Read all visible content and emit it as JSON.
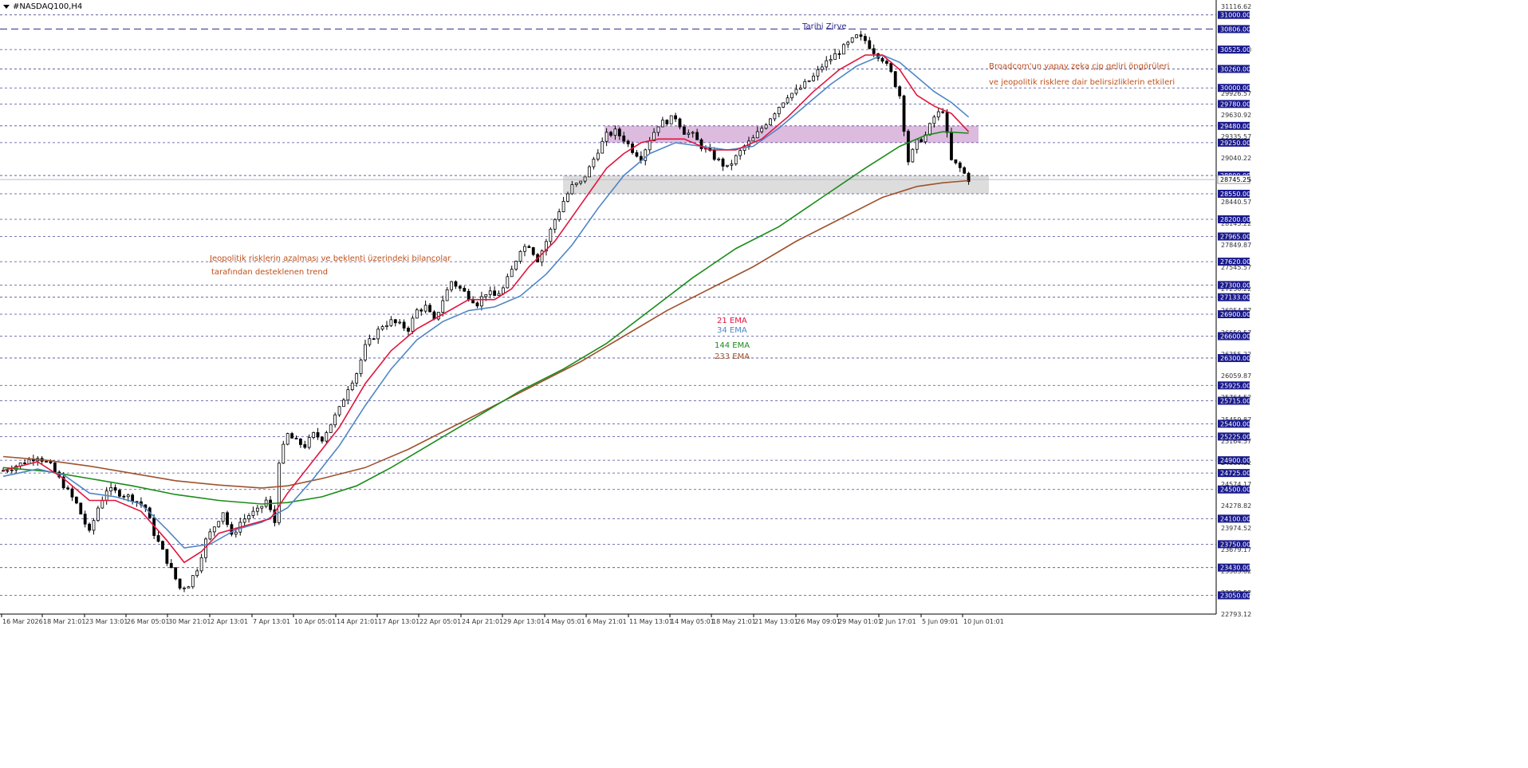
{
  "symbol": {
    "label": "#NASDAQ100,H4"
  },
  "colors": {
    "background": "#ffffff",
    "grid_level": "#2b2b8c",
    "candle": "#000000",
    "ema21": "#e2143c",
    "ema34": "#4f86c6",
    "ema144": "#1a8c1a",
    "ema233": "#a0522d",
    "annotation_orange": "#c0501a",
    "annotation_blue": "#2b2b8c",
    "resistance_zone": "#d8b4dc",
    "support_zone": "#d9d9d9",
    "price_box_fill": "#1a1a8c",
    "price_box_text": "#ffffff",
    "axis_text": "#333333"
  },
  "annotations": {
    "ath_label": "Tarihi Zirve",
    "right_note_line1": "Broadcom'un yapay zeka çip geliri öngörüleri",
    "right_note_line2": "ve jeopolitik risklere dair belirsizliklerin etkileri",
    "left_note_line1": "Jeopolitik risklerin azalması ve beklenti üzerindeki bilançolar",
    "left_note_line2": "tarafından desteklenen trend"
  },
  "chart_data": {
    "type": "candlestick",
    "title": "",
    "timeframe": "H4",
    "ylim": [
      22793.12,
      31116.62
    ],
    "y_tick_labels": [
      "31116.62",
      "30525.00",
      "29926.57",
      "29630.92",
      "29335.57",
      "29040.22",
      "28745.25",
      "28440.57",
      "28145.22",
      "27849.87",
      "27545.57",
      "27250.22",
      "26954.87",
      "26650.57",
      "26355.22",
      "26059.87",
      "25764.52",
      "25459.87",
      "25164.57",
      "24869.22",
      "24574.17",
      "24278.82",
      "23974.52",
      "23679.17",
      "23383.82",
      "23088.52",
      "22793.12"
    ],
    "x_tick_labels": [
      "16 Mar 2026",
      "18 Mar 21:01",
      "23 Mar 13:01",
      "26 Mar 05:01",
      "30 Mar 21:01",
      "2 Apr 13:01",
      "7 Apr 13:01",
      "10 Apr 05:01",
      "14 Apr 21:01",
      "17 Apr 13:01",
      "22 Apr 05:01",
      "24 Apr 21:01",
      "29 Apr 13:01",
      "4 May 05:01",
      "6 May 21:01",
      "11 May 13:01",
      "14 May 05:01",
      "18 May 21:01",
      "21 May 13:01",
      "26 May 09:01",
      "29 May 01:01",
      "2 Jun 17:01",
      "5 Jun 09:01",
      "10 Jun 01:01"
    ],
    "levels": [
      31000,
      30806,
      30525,
      30260,
      30000,
      29780,
      29480,
      29250,
      28800,
      28550,
      28200,
      27965,
      27620,
      27300,
      27133,
      26900,
      26600,
      26300,
      25925,
      25715,
      25400,
      25225,
      24900,
      24725,
      24500,
      24100,
      23750,
      23430,
      23050
    ],
    "ath_level": 30806,
    "current_price": 28745.25,
    "zones": [
      {
        "name": "resistance",
        "from": 29250,
        "to": 29480
      },
      {
        "name": "support",
        "from": 28550,
        "to": 28800
      }
    ],
    "legend": [
      {
        "name": "21 EMA",
        "color": "#e2143c"
      },
      {
        "name": "34 EMA",
        "color": "#4f86c6"
      },
      {
        "name": "144 EMA",
        "color": "#1a8c1a"
      },
      {
        "name": "233 EMA",
        "color": "#a0522d"
      }
    ],
    "price_path": [
      [
        0,
        24760
      ],
      [
        4,
        24850
      ],
      [
        8,
        24960
      ],
      [
        11,
        24820
      ],
      [
        14,
        24560
      ],
      [
        17,
        24300
      ],
      [
        20,
        23900
      ],
      [
        22,
        24250
      ],
      [
        24,
        24500
      ],
      [
        27,
        24450
      ],
      [
        30,
        24380
      ],
      [
        33,
        24250
      ],
      [
        35,
        23900
      ],
      [
        37,
        23650
      ],
      [
        39,
        23400
      ],
      [
        41,
        23150
      ],
      [
        43,
        23200
      ],
      [
        45,
        23420
      ],
      [
        47,
        23800
      ],
      [
        49,
        24000
      ],
      [
        51,
        24200
      ],
      [
        53,
        23850
      ],
      [
        55,
        24050
      ],
      [
        57,
        24150
      ],
      [
        59,
        24200
      ],
      [
        61,
        24350
      ],
      [
        63,
        24050
      ],
      [
        64,
        24900
      ],
      [
        66,
        25250
      ],
      [
        68,
        25150
      ],
      [
        70,
        25100
      ],
      [
        72,
        25250
      ],
      [
        74,
        25200
      ],
      [
        76,
        25400
      ],
      [
        78,
        25600
      ],
      [
        80,
        25900
      ],
      [
        82,
        26100
      ],
      [
        84,
        26450
      ],
      [
        86,
        26600
      ],
      [
        88,
        26750
      ],
      [
        90,
        26800
      ],
      [
        92,
        26750
      ],
      [
        94,
        26700
      ],
      [
        96,
        26950
      ],
      [
        98,
        27000
      ],
      [
        100,
        26800
      ],
      [
        102,
        27100
      ],
      [
        104,
        27350
      ],
      [
        106,
        27250
      ],
      [
        108,
        27150
      ],
      [
        110,
        27050
      ],
      [
        112,
        27200
      ],
      [
        114,
        27150
      ],
      [
        116,
        27250
      ],
      [
        118,
        27500
      ],
      [
        120,
        27800
      ],
      [
        122,
        27850
      ],
      [
        124,
        27650
      ],
      [
        126,
        27900
      ],
      [
        128,
        28200
      ],
      [
        130,
        28450
      ],
      [
        132,
        28650
      ],
      [
        134,
        28700
      ],
      [
        136,
        28900
      ],
      [
        138,
        29150
      ],
      [
        140,
        29350
      ],
      [
        142,
        29400
      ],
      [
        144,
        29300
      ],
      [
        146,
        29150
      ],
      [
        148,
        29050
      ],
      [
        150,
        29300
      ],
      [
        152,
        29500
      ],
      [
        154,
        29550
      ],
      [
        156,
        29600
      ],
      [
        158,
        29400
      ],
      [
        160,
        29350
      ],
      [
        162,
        29200
      ],
      [
        164,
        29100
      ],
      [
        166,
        29000
      ],
      [
        168,
        28900
      ],
      [
        170,
        29050
      ],
      [
        172,
        29200
      ],
      [
        174,
        29300
      ],
      [
        176,
        29450
      ],
      [
        178,
        29600
      ],
      [
        180,
        29750
      ],
      [
        182,
        29900
      ],
      [
        184,
        29950
      ],
      [
        186,
        30050
      ],
      [
        188,
        30150
      ],
      [
        190,
        30300
      ],
      [
        192,
        30400
      ],
      [
        194,
        30500
      ],
      [
        196,
        30600
      ],
      [
        198,
        30700
      ],
      [
        200,
        30650
      ],
      [
        202,
        30500
      ],
      [
        204,
        30400
      ],
      [
        206,
        30200
      ],
      [
        208,
        29900
      ],
      [
        210,
        29000
      ],
      [
        212,
        29250
      ],
      [
        214,
        29350
      ],
      [
        216,
        29600
      ],
      [
        218,
        29700
      ],
      [
        220,
        29000
      ],
      [
        222,
        28900
      ],
      [
        224,
        28750
      ]
    ],
    "ema21_path": [
      [
        0,
        24760
      ],
      [
        8,
        24880
      ],
      [
        14,
        24650
      ],
      [
        20,
        24350
      ],
      [
        26,
        24350
      ],
      [
        32,
        24200
      ],
      [
        38,
        23800
      ],
      [
        42,
        23500
      ],
      [
        46,
        23650
      ],
      [
        50,
        23900
      ],
      [
        56,
        24000
      ],
      [
        62,
        24100
      ],
      [
        66,
        24450
      ],
      [
        72,
        24900
      ],
      [
        78,
        25350
      ],
      [
        84,
        25950
      ],
      [
        90,
        26400
      ],
      [
        96,
        26700
      ],
      [
        102,
        26900
      ],
      [
        108,
        27100
      ],
      [
        114,
        27100
      ],
      [
        118,
        27250
      ],
      [
        122,
        27550
      ],
      [
        128,
        27900
      ],
      [
        134,
        28400
      ],
      [
        140,
        28900
      ],
      [
        144,
        29100
      ],
      [
        148,
        29250
      ],
      [
        152,
        29300
      ],
      [
        158,
        29300
      ],
      [
        164,
        29150
      ],
      [
        170,
        29150
      ],
      [
        176,
        29300
      ],
      [
        182,
        29600
      ],
      [
        188,
        29950
      ],
      [
        194,
        30250
      ],
      [
        200,
        30450
      ],
      [
        204,
        30450
      ],
      [
        208,
        30250
      ],
      [
        212,
        29900
      ],
      [
        216,
        29750
      ],
      [
        220,
        29650
      ],
      [
        224,
        29400
      ]
    ],
    "ema34_path": [
      [
        0,
        24680
      ],
      [
        8,
        24780
      ],
      [
        14,
        24700
      ],
      [
        20,
        24450
      ],
      [
        26,
        24400
      ],
      [
        32,
        24300
      ],
      [
        38,
        23950
      ],
      [
        42,
        23700
      ],
      [
        48,
        23750
      ],
      [
        54,
        23950
      ],
      [
        60,
        24050
      ],
      [
        66,
        24250
      ],
      [
        72,
        24650
      ],
      [
        78,
        25100
      ],
      [
        84,
        25650
      ],
      [
        90,
        26150
      ],
      [
        96,
        26550
      ],
      [
        102,
        26800
      ],
      [
        108,
        26950
      ],
      [
        114,
        27000
      ],
      [
        120,
        27150
      ],
      [
        126,
        27450
      ],
      [
        132,
        27850
      ],
      [
        138,
        28350
      ],
      [
        144,
        28800
      ],
      [
        150,
        29100
      ],
      [
        156,
        29250
      ],
      [
        162,
        29200
      ],
      [
        168,
        29150
      ],
      [
        174,
        29200
      ],
      [
        180,
        29450
      ],
      [
        186,
        29750
      ],
      [
        192,
        30050
      ],
      [
        198,
        30300
      ],
      [
        204,
        30450
      ],
      [
        208,
        30350
      ],
      [
        212,
        30150
      ],
      [
        216,
        29950
      ],
      [
        220,
        29800
      ],
      [
        224,
        29600
      ]
    ],
    "ema144_path": [
      [
        0,
        24800
      ],
      [
        10,
        24750
      ],
      [
        20,
        24650
      ],
      [
        30,
        24550
      ],
      [
        40,
        24430
      ],
      [
        50,
        24350
      ],
      [
        60,
        24300
      ],
      [
        66,
        24320
      ],
      [
        74,
        24400
      ],
      [
        82,
        24550
      ],
      [
        90,
        24800
      ],
      [
        100,
        25150
      ],
      [
        110,
        25500
      ],
      [
        120,
        25850
      ],
      [
        130,
        26150
      ],
      [
        140,
        26500
      ],
      [
        150,
        26950
      ],
      [
        160,
        27400
      ],
      [
        170,
        27800
      ],
      [
        180,
        28100
      ],
      [
        190,
        28500
      ],
      [
        200,
        28900
      ],
      [
        208,
        29200
      ],
      [
        214,
        29350
      ],
      [
        218,
        29400
      ],
      [
        224,
        29380
      ]
    ],
    "ema233_path": [
      [
        0,
        24950
      ],
      [
        10,
        24900
      ],
      [
        20,
        24820
      ],
      [
        30,
        24720
      ],
      [
        40,
        24620
      ],
      [
        50,
        24560
      ],
      [
        60,
        24520
      ],
      [
        66,
        24550
      ],
      [
        74,
        24650
      ],
      [
        84,
        24800
      ],
      [
        94,
        25050
      ],
      [
        104,
        25350
      ],
      [
        114,
        25650
      ],
      [
        124,
        25950
      ],
      [
        134,
        26250
      ],
      [
        144,
        26600
      ],
      [
        154,
        26950
      ],
      [
        164,
        27250
      ],
      [
        174,
        27550
      ],
      [
        184,
        27900
      ],
      [
        194,
        28200
      ],
      [
        204,
        28500
      ],
      [
        212,
        28650
      ],
      [
        218,
        28700
      ],
      [
        224,
        28730
      ]
    ]
  }
}
